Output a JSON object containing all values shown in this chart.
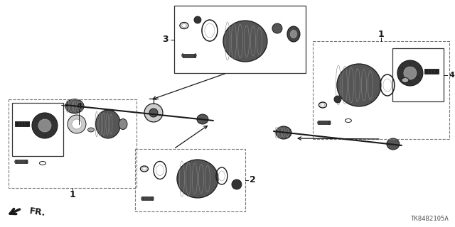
{
  "diagram_id": "TK84B2105A",
  "background_color": "#ffffff",
  "line_color": "#1a1a1a",
  "figsize": [
    6.4,
    3.2
  ],
  "dpi": 100,
  "fr_label": "FR.",
  "labels": {
    "1": "1",
    "2": "2",
    "3": "3",
    "4": "4"
  }
}
